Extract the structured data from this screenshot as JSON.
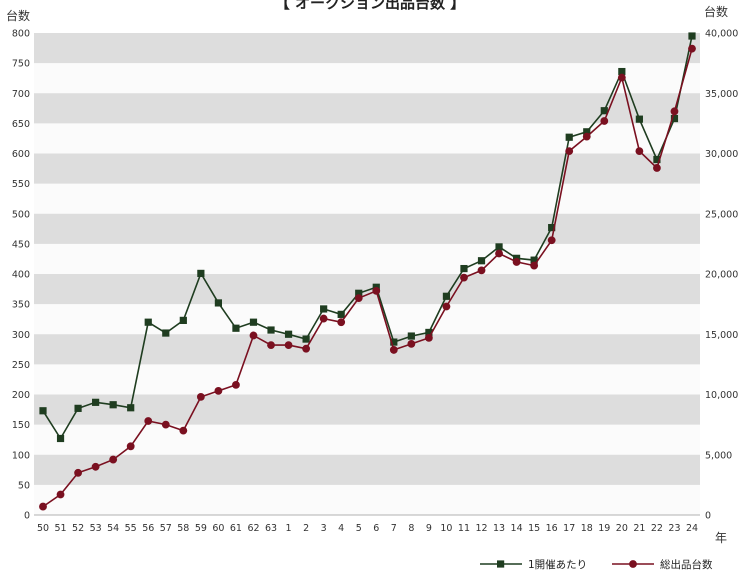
{
  "chart_data": {
    "type": "line",
    "title": "【 オークション出品台数 】",
    "ylabel_left": "台数",
    "ylabel_right": "台数",
    "xlabel": "年",
    "categories": [
      "50",
      "51",
      "52",
      "53",
      "54",
      "55",
      "56",
      "57",
      "58",
      "59",
      "60",
      "61",
      "62",
      "63",
      "1",
      "2",
      "3",
      "4",
      "5",
      "6",
      "7",
      "8",
      "9",
      "10",
      "11",
      "12",
      "13",
      "14",
      "15",
      "16",
      "17",
      "18",
      "19",
      "20",
      "21",
      "22",
      "23",
      "24"
    ],
    "ylim_left": [
      0,
      800
    ],
    "yticks_left": [
      0,
      50,
      100,
      150,
      200,
      250,
      300,
      350,
      400,
      450,
      500,
      550,
      600,
      650,
      700,
      750,
      800
    ],
    "ylim_right": [
      0,
      40000
    ],
    "yticks_right": [
      0,
      5000,
      10000,
      15000,
      20000,
      25000,
      30000,
      35000,
      40000
    ],
    "ytick_labels_right": [
      "0",
      "5,000",
      "10,000",
      "15,000",
      "20,000",
      "25,000",
      "30,000",
      "35,000",
      "40,000"
    ],
    "grid": "horizontal bands",
    "legend_position": "bottom-right",
    "series": [
      {
        "name": "1開催あたり",
        "axis": "left",
        "color": "#1f3d20",
        "marker": "square",
        "values": [
          173,
          127,
          177,
          187,
          183,
          178,
          320,
          302,
          323,
          401,
          352,
          310,
          320,
          307,
          300,
          292,
          342,
          333,
          368,
          378,
          287,
          297,
          303,
          363,
          409,
          422,
          445,
          426,
          423,
          477,
          627,
          636,
          671,
          736,
          657,
          590,
          658,
          795
        ]
      },
      {
        "name": "総出品台数",
        "axis": "right",
        "color": "#7a1020",
        "marker": "circle",
        "values": [
          700,
          1700,
          3500,
          4000,
          4600,
          5700,
          7800,
          7500,
          7000,
          9800,
          10300,
          10800,
          14900,
          14100,
          14100,
          13800,
          16300,
          16000,
          18000,
          18600,
          13700,
          14200,
          14700,
          17300,
          19700,
          20300,
          21700,
          21000,
          20700,
          22800,
          30200,
          31400,
          32700,
          36300,
          30200,
          28800,
          33500,
          38700
        ]
      }
    ]
  }
}
